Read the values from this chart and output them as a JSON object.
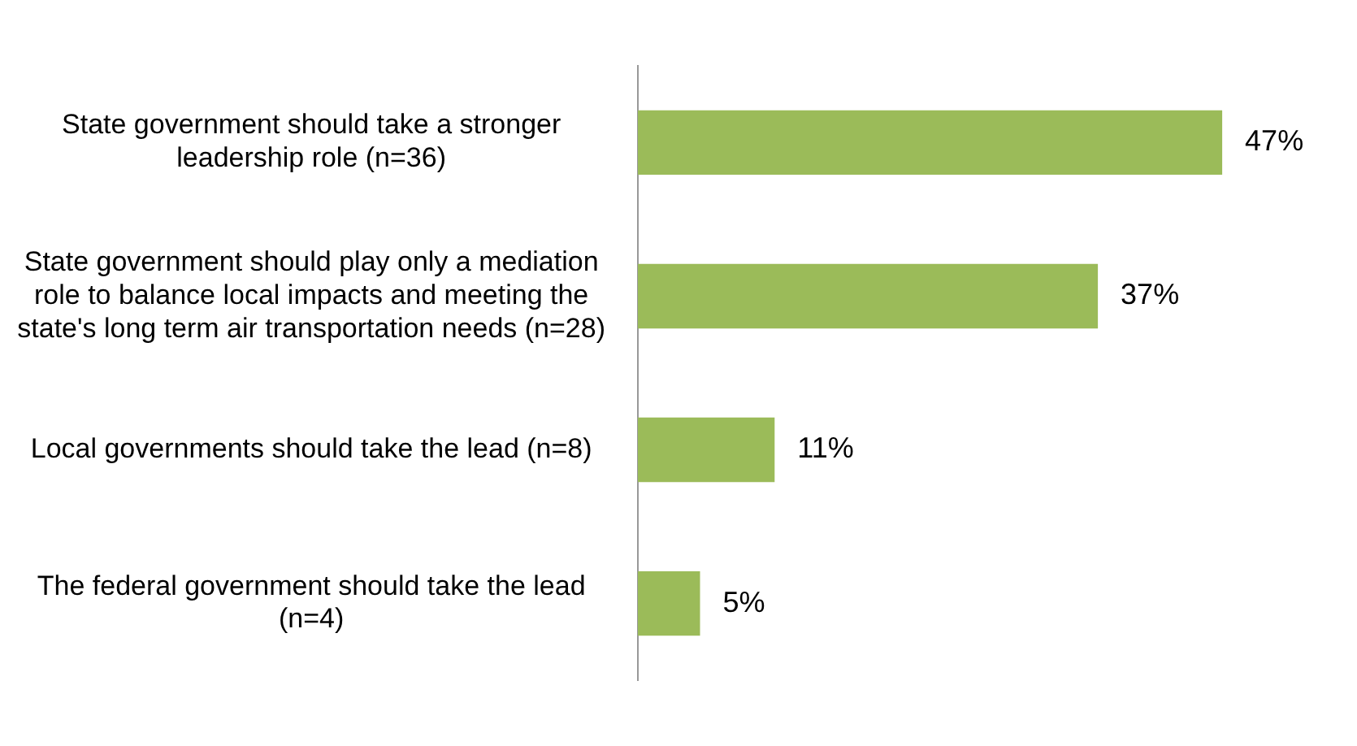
{
  "chart_data": {
    "type": "bar",
    "orientation": "horizontal",
    "categories": [
      "State government should take a stronger leadership role (n=36)",
      "State government should play only a mediation role to balance local impacts and meeting the state's long term air transportation needs (n=28)",
      "Local governments should take the lead (n=8)",
      "The federal government should take the lead (n=4)"
    ],
    "values": [
      47,
      37,
      11,
      5
    ],
    "value_labels": [
      "47%",
      "37%",
      "11%",
      "5%"
    ],
    "color": "#9bbb59"
  }
}
